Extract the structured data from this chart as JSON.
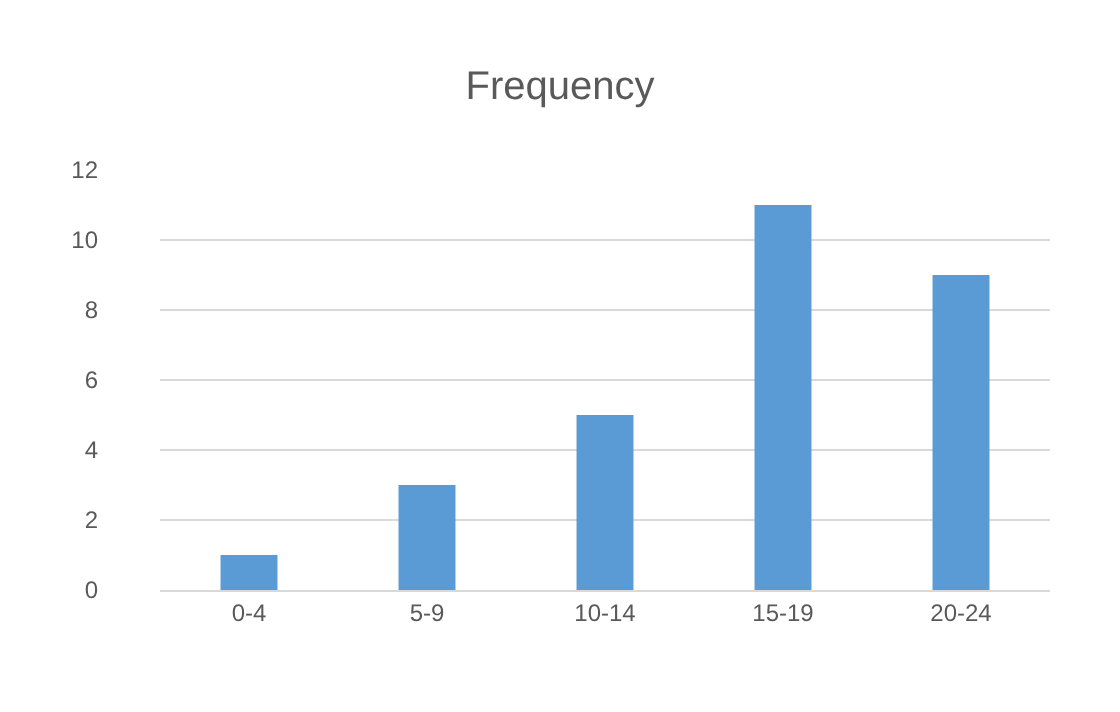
{
  "chart_data": {
    "type": "bar",
    "title": "Frequency",
    "categories": [
      "0-4",
      "5-9",
      "10-14",
      "15-19",
      "20-24"
    ],
    "values": [
      1,
      3,
      5,
      11,
      9
    ],
    "color": "#5b9bd5",
    "ylim": [
      0,
      12
    ],
    "yticks": [
      0,
      2,
      4,
      6,
      8,
      10,
      12
    ],
    "grid": "y",
    "legend": false
  }
}
